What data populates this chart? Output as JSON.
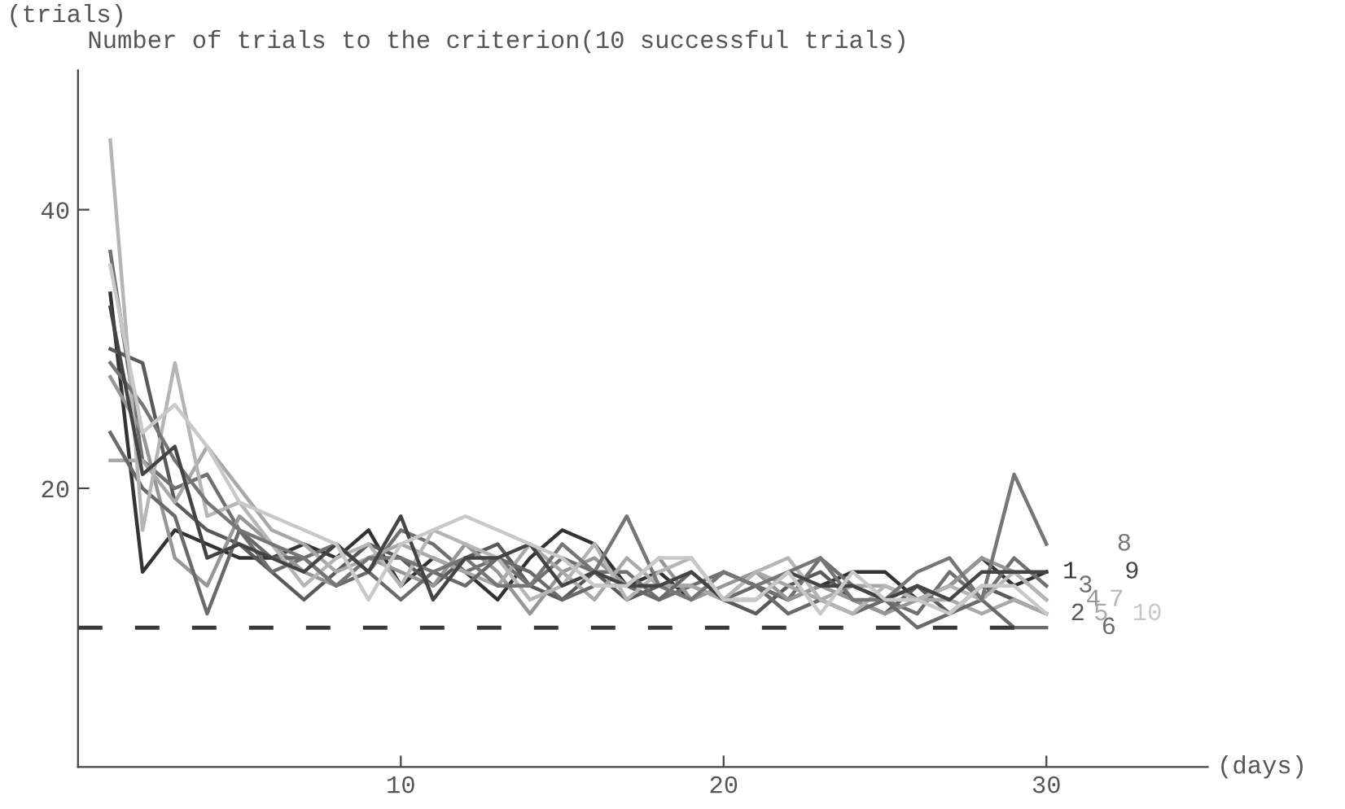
{
  "chart_data": {
    "type": "line",
    "title": "Number of trials to the criterion(10 successful trials)",
    "xlabel": "(days)",
    "ylabel": "(trials)",
    "x": [
      1,
      2,
      3,
      4,
      5,
      6,
      7,
      8,
      9,
      10,
      11,
      12,
      13,
      14,
      15,
      16,
      17,
      18,
      19,
      20,
      21,
      22,
      23,
      24,
      25,
      26,
      27,
      28,
      29,
      30
    ],
    "xlim": [
      0,
      35
    ],
    "ylim": [
      0,
      50
    ],
    "xticks": [
      10,
      20,
      30
    ],
    "yticks": [
      20,
      40
    ],
    "grid": false,
    "legend": false,
    "marker": "none",
    "line_style": "solid",
    "ref_lines": [
      {
        "axis": "y",
        "value": 10,
        "color": "#3a3a3a",
        "line_style": "dashed"
      }
    ],
    "series": [
      {
        "name": "1",
        "color": "#333333",
        "values": [
          34,
          14,
          17,
          16,
          15,
          15,
          16,
          15,
          17,
          13,
          15,
          14,
          12,
          15,
          17,
          16,
          13,
          14,
          12,
          14,
          13,
          12,
          13,
          14,
          14,
          12,
          13,
          15,
          13,
          14
        ]
      },
      {
        "name": "2",
        "color": "#5a5a5a",
        "values": [
          30,
          29,
          19,
          17,
          16,
          14,
          12,
          14,
          16,
          15,
          13,
          15,
          16,
          13,
          12,
          14,
          12,
          13,
          13,
          12,
          11,
          13,
          14,
          12,
          11,
          13,
          11,
          13,
          12,
          11
        ]
      },
      {
        "name": "3",
        "color": "#707070",
        "values": [
          37,
          22,
          20,
          21,
          17,
          14,
          15,
          16,
          14,
          17,
          16,
          14,
          15,
          13,
          15,
          14,
          14,
          12,
          13,
          14,
          13,
          12,
          15,
          13,
          12,
          11,
          14,
          12,
          15,
          13
        ]
      },
      {
        "name": "4",
        "color": "#969696",
        "values": [
          28,
          24,
          15,
          13,
          18,
          16,
          14,
          13,
          15,
          14,
          13,
          16,
          14,
          11,
          14,
          15,
          13,
          15,
          12,
          13,
          14,
          12,
          13,
          12,
          11,
          12,
          13,
          15,
          14,
          12
        ]
      },
      {
        "name": "5",
        "color": "#a8a8a8",
        "values": [
          22,
          22,
          19,
          23,
          20,
          17,
          16,
          14,
          15,
          16,
          15,
          14,
          13,
          16,
          14,
          12,
          15,
          13,
          13,
          12,
          14,
          13,
          12,
          13,
          13,
          12,
          12,
          11,
          12,
          11
        ]
      },
      {
        "name": "6",
        "color": "#6a6a6a",
        "values": [
          24,
          20,
          18,
          11,
          17,
          15,
          15,
          13,
          14,
          12,
          14,
          13,
          15,
          14,
          12,
          13,
          13,
          12,
          14,
          12,
          13,
          11,
          12,
          11,
          12,
          10,
          11,
          12,
          10,
          10
        ]
      },
      {
        "name": "7",
        "color": "#b5b5b5",
        "values": [
          45,
          17,
          29,
          18,
          19,
          16,
          13,
          15,
          16,
          13,
          17,
          16,
          15,
          12,
          13,
          16,
          12,
          14,
          15,
          12,
          14,
          15,
          12,
          11,
          13,
          12,
          13,
          12,
          14,
          12
        ]
      },
      {
        "name": "8",
        "color": "#767676",
        "values": [
          29,
          26,
          22,
          19,
          17,
          16,
          15,
          13,
          15,
          15,
          14,
          15,
          13,
          13,
          16,
          14,
          18,
          13,
          12,
          14,
          13,
          14,
          15,
          12,
          12,
          14,
          15,
          12,
          21,
          16
        ]
      },
      {
        "name": "9",
        "color": "#444444",
        "values": [
          33,
          21,
          23,
          15,
          16,
          15,
          14,
          16,
          14,
          18,
          12,
          15,
          15,
          16,
          13,
          14,
          13,
          13,
          14,
          12,
          12,
          14,
          13,
          13,
          12,
          13,
          12,
          14,
          14,
          14
        ]
      },
      {
        "name": "10",
        "color": "#c8c8c8",
        "values": [
          36,
          24,
          26,
          23,
          19,
          18,
          17,
          16,
          12,
          16,
          17,
          18,
          17,
          16,
          15,
          13,
          13,
          15,
          15,
          12,
          12,
          14,
          11,
          14,
          12,
          12,
          11,
          13,
          13,
          11
        ]
      }
    ]
  }
}
